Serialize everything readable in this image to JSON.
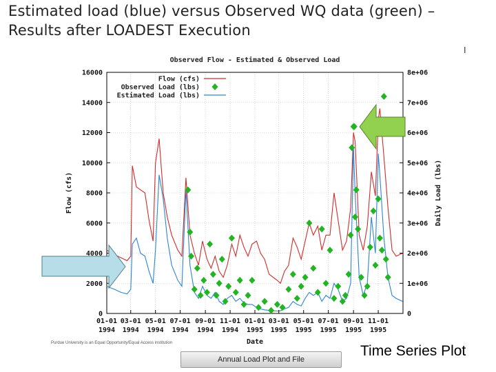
{
  "slide": {
    "title_line1": "Estimated load (blue) versus Observed WQ data (green) –",
    "title_line2": "Results after LOADEST Execution",
    "tick_char": "I",
    "footnote": "Purdue University is an Equal Opportunity/Equal Access institution",
    "button_label": "Annual Load Plot and File",
    "caption": "Time Series Plot"
  },
  "colors": {
    "flow": "#d42a2a",
    "estimated": "#2a84d4",
    "observed": "#22b422",
    "arrow_green": "#92d050",
    "arrow_blue": "#b7dee8"
  },
  "chart_data": {
    "type": "line",
    "title": "Observed Flow - Estimated & Observed Load",
    "xlabel": "Date",
    "ylabel_left": "Flow (cfs)",
    "ylabel_right": "Daily Load (lbs)",
    "x_range": [
      "1994-01-01",
      "1996-01-01"
    ],
    "ylim_left": [
      0,
      16000
    ],
    "ylim_right": [
      0,
      8000000
    ],
    "yticks_left": [
      "0",
      "2000",
      "4000",
      "6000",
      "8000",
      "10000",
      "12000",
      "14000",
      "16000"
    ],
    "yticks_right": [
      "0",
      "1e+06",
      "2e+06",
      "3e+06",
      "4e+06",
      "5e+06",
      "6e+06",
      "7e+06",
      "8e+06"
    ],
    "xticks": [
      {
        "date": "1994-01-01",
        "label1": "01-01",
        "label2": "1994"
      },
      {
        "date": "1994-03-01",
        "label1": "03-01",
        "label2": "1994"
      },
      {
        "date": "1994-05-01",
        "label1": "05-01",
        "label2": "1994"
      },
      {
        "date": "1994-07-01",
        "label1": "07-01",
        "label2": "1994"
      },
      {
        "date": "1994-09-01",
        "label1": "09-01",
        "label2": "1994"
      },
      {
        "date": "1994-11-01",
        "label1": "11-01",
        "label2": "1994"
      },
      {
        "date": "1995-01-01",
        "label1": "01-01",
        "label2": "1995"
      },
      {
        "date": "1995-03-01",
        "label1": "03-01",
        "label2": "1995"
      },
      {
        "date": "1995-05-01",
        "label1": "05-01",
        "label2": "1995"
      },
      {
        "date": "1995-07-01",
        "label1": "07-01",
        "label2": "1995"
      },
      {
        "date": "1995-09-01",
        "label1": "09-01",
        "label2": "1995"
      },
      {
        "date": "1995-11-01",
        "label1": "11-01",
        "label2": "1995"
      }
    ],
    "grid": true,
    "legend_position": "top-left",
    "series": [
      {
        "name": "Flow (cfs)",
        "axis": "left",
        "kind": "line",
        "color": "#d42a2a",
        "x": [
          "1994-01-01",
          "1994-01-20",
          "1994-02-05",
          "1994-02-20",
          "1994-03-01",
          "1994-03-05",
          "1994-03-15",
          "1994-03-25",
          "1994-04-05",
          "1994-04-15",
          "1994-04-25",
          "1994-05-01",
          "1994-05-10",
          "1994-05-20",
          "1994-05-30",
          "1994-06-10",
          "1994-06-25",
          "1994-07-05",
          "1994-07-15",
          "1994-07-25",
          "1994-08-05",
          "1994-08-15",
          "1994-08-25",
          "1994-09-05",
          "1994-09-15",
          "1994-09-25",
          "1994-10-05",
          "1994-10-15",
          "1994-10-25",
          "1994-11-05",
          "1994-11-15",
          "1994-11-25",
          "1994-12-05",
          "1994-12-15",
          "1994-12-25",
          "1995-01-05",
          "1995-01-15",
          "1995-01-25",
          "1995-02-05",
          "1995-02-15",
          "1995-02-25",
          "1995-03-05",
          "1995-03-15",
          "1995-03-25",
          "1995-04-05",
          "1995-04-15",
          "1995-04-25",
          "1995-05-05",
          "1995-05-15",
          "1995-05-25",
          "1995-06-05",
          "1995-06-15",
          "1995-06-25",
          "1995-07-05",
          "1995-07-15",
          "1995-07-25",
          "1995-08-05",
          "1995-08-15",
          "1995-08-25",
          "1995-09-01",
          "1995-09-05",
          "1995-09-15",
          "1995-09-25",
          "1995-10-05",
          "1995-10-15",
          "1995-10-25",
          "1995-11-01",
          "1995-11-05",
          "1995-11-15",
          "1995-11-25",
          "1995-12-05",
          "1995-12-15",
          "1995-12-31"
        ],
        "y": [
          4200,
          3900,
          3700,
          3500,
          3800,
          9800,
          8400,
          8200,
          8000,
          6200,
          4800,
          10000,
          11600,
          8000,
          6400,
          5200,
          4200,
          3800,
          9000,
          5200,
          4000,
          3200,
          4800,
          3600,
          3000,
          3800,
          2800,
          2400,
          3200,
          4600,
          3800,
          5200,
          4400,
          3800,
          4600,
          4800,
          4000,
          3600,
          2600,
          2400,
          2200,
          2000,
          2800,
          3200,
          5000,
          4400,
          3600,
          4800,
          6000,
          5200,
          5800,
          4200,
          5200,
          5200,
          8000,
          6200,
          4200,
          4800,
          7000,
          12000,
          11400,
          5200,
          4200,
          5800,
          9400,
          7800,
          12800,
          13600,
          10400,
          7000,
          4200,
          3800,
          4000
        ]
      },
      {
        "name": "Observed Load (lbs)",
        "axis": "right",
        "kind": "scatter",
        "color": "#22b422",
        "x": [
          "1994-07-20",
          "1994-07-25",
          "1994-07-28",
          "1994-08-05",
          "1994-08-12",
          "1994-08-20",
          "1994-08-28",
          "1994-09-05",
          "1994-09-12",
          "1994-09-20",
          "1994-09-28",
          "1994-10-05",
          "1994-10-12",
          "1994-10-20",
          "1994-10-28",
          "1994-11-05",
          "1994-11-15",
          "1994-11-25",
          "1994-12-05",
          "1994-12-15",
          "1994-12-25",
          "1995-01-10",
          "1995-01-25",
          "1995-02-10",
          "1995-02-25",
          "1995-03-10",
          "1995-03-25",
          "1995-04-05",
          "1995-04-15",
          "1995-04-25",
          "1995-05-05",
          "1995-05-15",
          "1995-05-25",
          "1995-06-05",
          "1995-06-15",
          "1995-06-25",
          "1995-07-05",
          "1995-07-15",
          "1995-07-25",
          "1995-08-05",
          "1995-08-12",
          "1995-08-20",
          "1995-08-25",
          "1995-08-28",
          "1995-09-01",
          "1995-09-03",
          "1995-09-05",
          "1995-09-08",
          "1995-09-12",
          "1995-09-20",
          "1995-09-28",
          "1995-10-05",
          "1995-10-12",
          "1995-10-20",
          "1995-10-25",
          "1995-11-01",
          "1995-11-05",
          "1995-11-10",
          "1995-11-15",
          "1995-11-20",
          "1995-11-25"
        ],
        "y": [
          4100000,
          2700000,
          1900000,
          800000,
          1500000,
          600000,
          1100000,
          700000,
          2300000,
          1300000,
          600000,
          1000000,
          1800000,
          400000,
          900000,
          2500000,
          700000,
          1100000,
          300000,
          600000,
          1100000,
          200000,
          400000,
          100000,
          300000,
          200000,
          800000,
          1300000,
          500000,
          900000,
          1200000,
          3000000,
          1500000,
          700000,
          2800000,
          1000000,
          2100000,
          500000,
          900000,
          400000,
          600000,
          1300000,
          2600000,
          5500000,
          6200000,
          6200000,
          3200000,
          4100000,
          2800000,
          1200000,
          600000,
          900000,
          2200000,
          3400000,
          1600000,
          3800000,
          2500000,
          2100000,
          7200000,
          1800000,
          1200000
        ]
      },
      {
        "name": "Estimated Load (lbs)",
        "axis": "right",
        "kind": "line",
        "color": "#2a84d4",
        "x": [
          "1994-01-01",
          "1994-01-20",
          "1994-02-05",
          "1994-02-20",
          "1994-03-01",
          "1994-03-05",
          "1994-03-15",
          "1994-03-25",
          "1994-04-05",
          "1994-04-15",
          "1994-04-25",
          "1994-05-01",
          "1994-05-10",
          "1994-05-20",
          "1994-05-30",
          "1994-06-10",
          "1994-06-25",
          "1994-07-05",
          "1994-07-15",
          "1994-07-25",
          "1994-08-05",
          "1994-08-15",
          "1994-08-25",
          "1994-09-05",
          "1994-09-15",
          "1994-09-25",
          "1994-10-05",
          "1994-10-15",
          "1994-10-25",
          "1994-11-05",
          "1994-11-15",
          "1994-11-25",
          "1994-12-05",
          "1994-12-15",
          "1994-12-25",
          "1995-01-05",
          "1995-01-15",
          "1995-01-25",
          "1995-02-05",
          "1995-02-15",
          "1995-02-25",
          "1995-03-05",
          "1995-03-15",
          "1995-03-25",
          "1995-04-05",
          "1995-04-15",
          "1995-04-25",
          "1995-05-05",
          "1995-05-15",
          "1995-05-25",
          "1995-06-05",
          "1995-06-15",
          "1995-06-25",
          "1995-07-05",
          "1995-07-15",
          "1995-07-25",
          "1995-08-05",
          "1995-08-15",
          "1995-08-25",
          "1995-09-01",
          "1995-09-05",
          "1995-09-15",
          "1995-09-25",
          "1995-10-05",
          "1995-10-15",
          "1995-10-25",
          "1995-11-01",
          "1995-11-05",
          "1995-11-15",
          "1995-11-25",
          "1995-12-05",
          "1995-12-15",
          "1995-12-31"
        ],
        "y": [
          900000,
          800000,
          700000,
          650000,
          800000,
          2300000,
          2500000,
          2000000,
          1900000,
          1400000,
          1000000,
          2100000,
          4600000,
          3800000,
          2500000,
          1600000,
          1100000,
          900000,
          4100000,
          1600000,
          700000,
          500000,
          900000,
          600000,
          500000,
          700000,
          400000,
          300000,
          500000,
          600000,
          400000,
          500000,
          350000,
          300000,
          300000,
          200000,
          150000,
          120000,
          100000,
          90000,
          80000,
          90000,
          150000,
          200000,
          400000,
          300000,
          250000,
          500000,
          700000,
          600000,
          700000,
          400000,
          600000,
          500000,
          1000000,
          800000,
          400000,
          500000,
          1000000,
          5500000,
          4000000,
          1200000,
          600000,
          1000000,
          3200000,
          2000000,
          5300000,
          4600000,
          2500000,
          1200000,
          600000,
          500000,
          400000
        ]
      }
    ]
  }
}
